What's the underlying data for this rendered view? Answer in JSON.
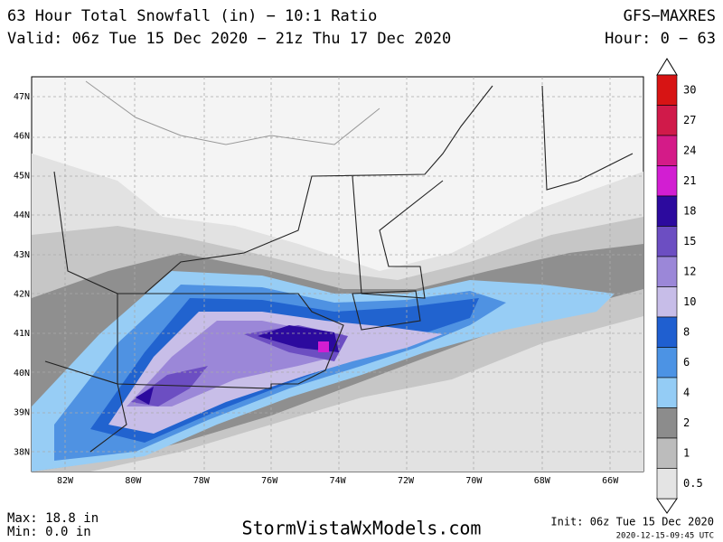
{
  "header": {
    "title": "63 Hour Total Snowfall (in) − 10:1 Ratio",
    "model": "GFS−MAXRES",
    "valid": "Valid: 06z Tue 15 Dec 2020 − 21z Thu 17 Dec 2020",
    "hour": "Hour: 0 − 63"
  },
  "map": {
    "lat_labels": [
      "47N",
      "46N",
      "45N",
      "44N",
      "43N",
      "42N",
      "41N",
      "40N",
      "39N",
      "38N"
    ],
    "lon_labels": [
      "82W",
      "80W",
      "78W",
      "76W",
      "74W",
      "72W",
      "70W",
      "68W",
      "66W"
    ]
  },
  "legend": {
    "levels": [
      {
        "label": "30",
        "color": "#d71414"
      },
      {
        "label": "27",
        "color": "#d01a4a"
      },
      {
        "label": "24",
        "color": "#d41b88"
      },
      {
        "label": "21",
        "color": "#d21ed2"
      },
      {
        "label": "18",
        "color": "#2c0a9e"
      },
      {
        "label": "15",
        "color": "#6c4ec2"
      },
      {
        "label": "12",
        "color": "#9b87d8"
      },
      {
        "label": "10",
        "color": "#c7bde8"
      },
      {
        "label": "8",
        "color": "#1f5fd0"
      },
      {
        "label": "6",
        "color": "#4c93e4"
      },
      {
        "label": "4",
        "color": "#94ccf5"
      },
      {
        "label": "2",
        "color": "#8c8c8c"
      },
      {
        "label": "1",
        "color": "#bcbcbc"
      },
      {
        "label": "0.5",
        "color": "#e4e4e4"
      }
    ]
  },
  "footer": {
    "max": "Max: 18.8 in",
    "min": "Min: 0.0 in",
    "site": "StormVistaWxModels.com",
    "init": "Init: 06z Tue 15 Dec 2020",
    "stamp": "2020-12-15-09:45 UTC"
  }
}
